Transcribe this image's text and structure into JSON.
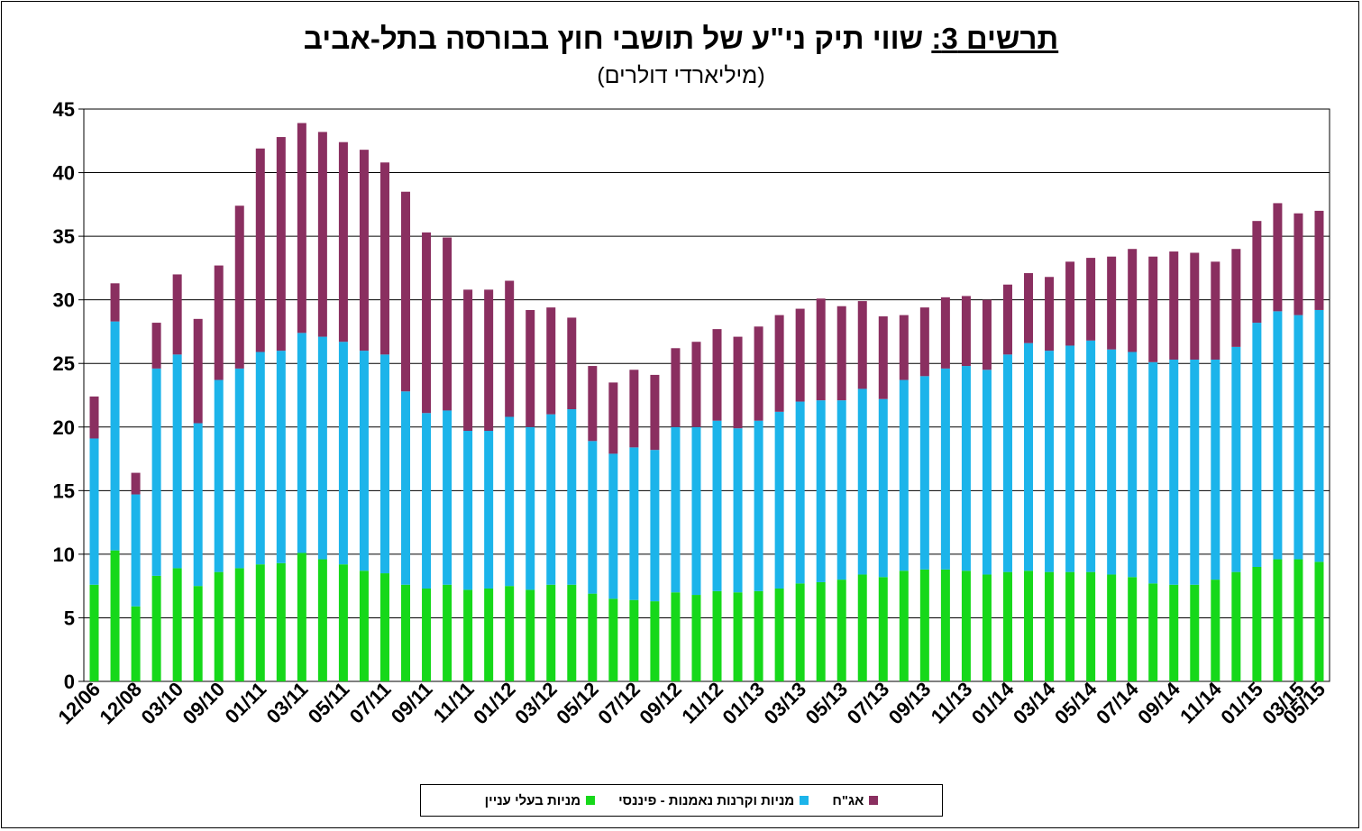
{
  "title_prefix": "תרשים 3:",
  "title_main": " שווי תיק ני\"ע של תושבי חוץ בבורסה בתל-אביב",
  "subtitle": "(מיליארדי דולרים)",
  "colors": {
    "equity_interest": "#16d81a",
    "equity_funds": "#1cb4ea",
    "bonds": "#8a2f60"
  },
  "chart_data": {
    "type": "bar",
    "stacked": true,
    "ylim": [
      0,
      45
    ],
    "yticks": [
      0,
      5,
      10,
      15,
      20,
      25,
      30,
      35,
      40,
      45
    ],
    "grid": true,
    "legend_position": "bottom",
    "x_tick_labels": [
      "12/06",
      "12/08",
      "03/10",
      "09/10",
      "01/11",
      "03/11",
      "05/11",
      "07/11",
      "09/11",
      "11/11",
      "01/12",
      "03/12",
      "05/12",
      "07/12",
      "09/12",
      "11/12",
      "01/13",
      "03/13",
      "05/13",
      "07/13",
      "09/13",
      "11/13",
      "01/14",
      "03/14",
      "05/14",
      "07/14",
      "09/14",
      "11/14",
      "01/15",
      "03/15",
      "05/15"
    ],
    "series": [
      {
        "name": "מניות בעלי עניין",
        "color_key": "equity_interest",
        "values": [
          7.6,
          10.3,
          5.9,
          8.3,
          8.9,
          7.5,
          8.6,
          8.9,
          9.2,
          9.3,
          10.1,
          9.6,
          9.2,
          8.7,
          8.5,
          7.6,
          7.3,
          7.6,
          7.2,
          7.3,
          7.5,
          7.2,
          7.6,
          7.6,
          6.9,
          6.5,
          6.4,
          6.3,
          7.0,
          6.8,
          7.1,
          7.0,
          7.1,
          7.3,
          7.7,
          7.8,
          8.0,
          8.4,
          8.2,
          8.7,
          8.8,
          8.8,
          8.7,
          8.4,
          8.6,
          8.7,
          8.6,
          8.6,
          8.6,
          8.4,
          8.2,
          7.7,
          7.6,
          7.6,
          8.0,
          8.6,
          9.0,
          9.6,
          9.6,
          9.4
        ]
      },
      {
        "name": "מניות וקרנות נאמנות - פיננסי",
        "color_key": "equity_funds",
        "values": [
          11.5,
          18.0,
          8.8,
          16.3,
          16.8,
          12.8,
          15.1,
          15.7,
          16.7,
          16.7,
          17.3,
          17.5,
          17.5,
          17.3,
          17.2,
          15.2,
          13.8,
          13.7,
          12.5,
          12.4,
          13.3,
          12.8,
          13.4,
          13.8,
          12.0,
          11.4,
          12.0,
          11.9,
          13.0,
          13.2,
          13.4,
          12.9,
          13.4,
          13.9,
          14.3,
          14.3,
          14.1,
          14.6,
          14.0,
          15.0,
          15.2,
          15.8,
          16.1,
          16.1,
          17.1,
          17.9,
          17.4,
          17.8,
          18.2,
          17.7,
          17.7,
          17.4,
          17.7,
          17.7,
          17.3,
          17.7,
          19.2,
          19.5,
          19.2,
          19.8
        ]
      },
      {
        "name": "אג\"ח",
        "color_key": "bonds",
        "values": [
          3.3,
          3.0,
          1.7,
          3.6,
          6.3,
          8.2,
          9.0,
          12.8,
          16.0,
          16.8,
          16.5,
          16.1,
          15.7,
          15.8,
          15.1,
          15.7,
          14.2,
          13.6,
          11.1,
          11.1,
          10.7,
          9.2,
          8.4,
          7.2,
          5.9,
          5.6,
          6.1,
          5.9,
          6.2,
          6.7,
          7.2,
          7.2,
          7.4,
          7.6,
          7.3,
          8.0,
          7.4,
          6.9,
          6.5,
          5.1,
          5.4,
          5.6,
          5.5,
          5.5,
          5.5,
          5.5,
          5.8,
          6.6,
          6.5,
          7.3,
          8.1,
          8.3,
          8.5,
          8.4,
          7.7,
          7.7,
          8.0,
          8.5,
          8.0,
          7.8
        ]
      }
    ]
  }
}
